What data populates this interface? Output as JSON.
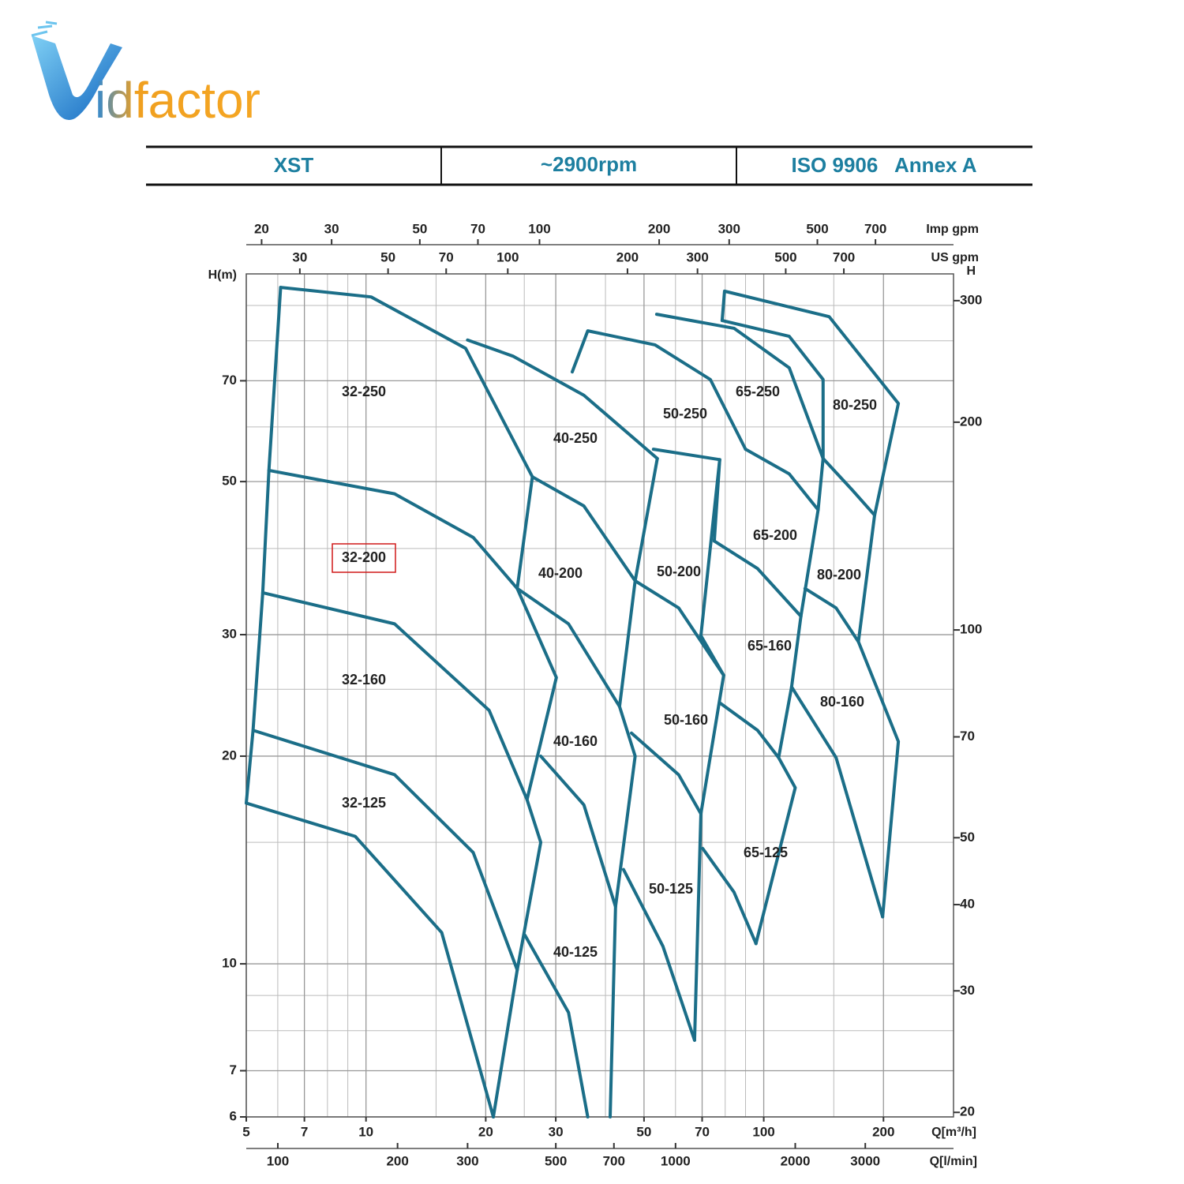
{
  "logo": {
    "text": "idfactor"
  },
  "header": {
    "cells": [
      "XST",
      "~2900rpm",
      "ISO 9906   Annex A"
    ]
  },
  "chart_data": {
    "type": "pump-curve",
    "xlabel": "Q[m³/h]",
    "ylabel": "H(m)",
    "xlim": [
      5,
      300
    ],
    "ylim": [
      6,
      100
    ],
    "log_x": true,
    "log_y": true,
    "grid": true,
    "xticks": [
      5,
      7,
      10,
      20,
      30,
      50,
      70,
      100,
      200
    ],
    "yticks": [
      6,
      7,
      10,
      20,
      30,
      50,
      70
    ],
    "xminor": [
      6,
      8,
      9,
      15,
      25,
      40,
      60,
      80,
      90,
      150
    ],
    "yminor": [
      8,
      9,
      15,
      25,
      40,
      60,
      80,
      90
    ],
    "y2label": "H",
    "y2lim": [
      19.7,
      328
    ],
    "y2ticks": [
      20,
      30,
      40,
      50,
      70,
      100,
      200,
      300
    ],
    "x2label": "US gpm",
    "x2lim": [
      22,
      1321
    ],
    "x2ticks": [
      30,
      50,
      70,
      100,
      200,
      300,
      500,
      700
    ],
    "x3label": "Imp gpm",
    "x3lim": [
      18.3,
      1100
    ],
    "x3ticks": [
      20,
      30,
      50,
      70,
      100,
      200,
      300,
      500,
      700
    ],
    "x4label": "Q[l/min]",
    "x4lim": [
      83.3,
      5000
    ],
    "x4ticks": [
      100,
      200,
      300,
      500,
      700,
      1000,
      2000,
      3000
    ],
    "color": "#1b6e88",
    "curves": [
      {
        "x": [
          6.1,
          5.7,
          5.5,
          5.2,
          5.0
        ],
        "y": [
          95.6,
          51.9,
          34.5,
          21.8,
          17.1
        ]
      },
      {
        "x": [
          6.1,
          10.3,
          17.8,
          26.2
        ],
        "y": [
          95.6,
          92.6,
          78,
          50.8
        ]
      },
      {
        "x": [
          26.2,
          24,
          30.1,
          25.4,
          27.5,
          24,
          20.9
        ],
        "y": [
          50.8,
          35,
          26,
          17.3,
          15,
          9.8,
          6
        ]
      },
      {
        "x": [
          5.7,
          11.8,
          18.6,
          24
        ],
        "y": [
          51.9,
          48,
          41.5,
          35
        ]
      },
      {
        "x": [
          5.5,
          11.8,
          20.4,
          25.4
        ],
        "y": [
          34.5,
          31.1,
          23.3,
          17.3
        ]
      },
      {
        "x": [
          5.2,
          11.8,
          18.6,
          24
        ],
        "y": [
          21.8,
          18.8,
          14.5,
          9.8
        ]
      },
      {
        "x": [
          5.0,
          9.4,
          15.5,
          20.9
        ],
        "y": [
          17.1,
          15.3,
          11.1,
          6
        ]
      },
      {
        "x": [
          18,
          23.4,
          35.3,
          54
        ],
        "y": [
          80.2,
          76,
          66.7,
          54
        ]
      },
      {
        "x": [
          54,
          47.5,
          43.4,
          47.5,
          42.4,
          41.1
        ],
        "y": [
          54,
          35.9,
          23.6,
          20,
          12.1,
          6
        ]
      },
      {
        "x": [
          26.2,
          35.3,
          47.5
        ],
        "y": [
          50.8,
          46.1,
          35.9
        ]
      },
      {
        "x": [
          24,
          32.3,
          43.4
        ],
        "y": [
          35,
          31.1,
          23.6
        ]
      },
      {
        "x": [
          27.5,
          35.3,
          42.4
        ],
        "y": [
          20,
          17,
          12.1
        ]
      },
      {
        "x": [
          25.1,
          32.3,
          36.1
        ],
        "y": [
          11,
          8.5,
          6
        ]
      },
      {
        "x": [
          33,
          36.1,
          53.3,
          73.4,
          90
        ],
        "y": [
          72.1,
          82.7,
          78.9,
          70.3,
          55.7
        ]
      },
      {
        "x": [
          52.8,
          77.5
        ],
        "y": [
          55.7,
          53.8
        ]
      },
      {
        "x": [
          77.5,
          69.5,
          79.3,
          69.5,
          67
        ],
        "y": [
          53.8,
          29.9,
          26.2,
          16.5,
          7.75
        ]
      },
      {
        "x": [
          47.5,
          61.1,
          79.3
        ],
        "y": [
          35.9,
          32.8,
          26.2
        ]
      },
      {
        "x": [
          46.5,
          61.1,
          69.5
        ],
        "y": [
          21.6,
          18.8,
          16.5
        ]
      },
      {
        "x": [
          44.4,
          55.8,
          67
        ],
        "y": [
          13.7,
          10.6,
          7.75
        ]
      },
      {
        "x": [
          53.8,
          84.2,
          115.9,
          141
        ],
        "y": [
          87.4,
          83.4,
          73.1,
          54
        ]
      },
      {
        "x": [
          141,
          137,
          124,
          117.5,
          109,
          120,
          95.6
        ],
        "y": [
          54,
          45.5,
          31.9,
          25.2,
          19.9,
          18,
          10.7
        ]
      },
      {
        "x": [
          90,
          115.9,
          137
        ],
        "y": [
          55.7,
          51.3,
          45.5
        ]
      },
      {
        "x": [
          77.5,
          75.1
        ],
        "y": [
          53.8,
          41
        ]
      },
      {
        "x": [
          75.1,
          96.5,
          124
        ],
        "y": [
          41,
          37.4,
          31.9
        ]
      },
      {
        "x": [
          77.5,
          96.5,
          109
        ],
        "y": [
          23.9,
          21.8,
          19.9
        ]
      },
      {
        "x": [
          70.2,
          84.2,
          95.6
        ],
        "y": [
          14.7,
          12.7,
          10.7
        ]
      },
      {
        "x": [
          78.6,
          79.7,
          146,
          218,
          190,
          173,
          218,
          199
        ],
        "y": [
          85.6,
          94.4,
          86.7,
          64.9,
          44.7,
          29.3,
          21,
          11.7
        ]
      },
      {
        "x": [
          78.6,
          115.9,
          141,
          141
        ],
        "y": [
          85.6,
          81.2,
          70.3,
          54
        ]
      },
      {
        "x": [
          141,
          167,
          190
        ],
        "y": [
          54,
          48.6,
          44.7
        ]
      },
      {
        "x": [
          127,
          152,
          173
        ],
        "y": [
          35,
          32.8,
          29.3
        ]
      },
      {
        "x": [
          117.5,
          152,
          199
        ],
        "y": [
          25.2,
          19.9,
          11.7
        ]
      }
    ],
    "regions": [
      "32-250",
      "40-250",
      "50-250",
      "65-250",
      "80-250",
      "32-200",
      "40-200",
      "50-200",
      "65-200",
      "80-200",
      "32-160",
      "40-160",
      "50-160",
      "65-160",
      "80-160",
      "32-125",
      "40-125",
      "50-125",
      "65-125"
    ]
  }
}
